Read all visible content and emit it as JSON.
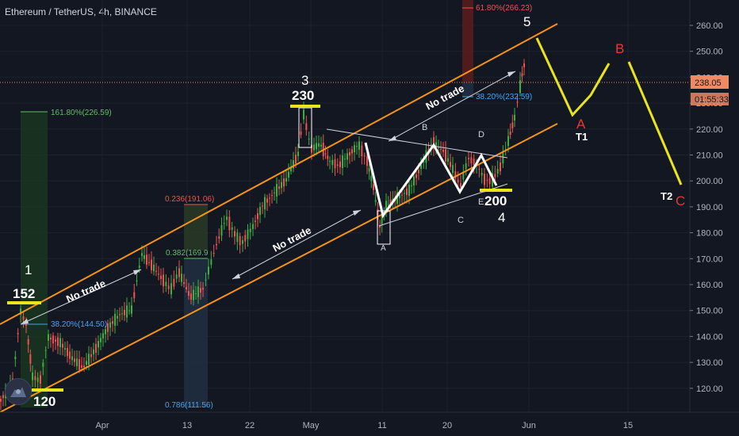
{
  "header": {
    "title": "Ethereum / TetherUS, 4h, BINANCE"
  },
  "colors": {
    "background": "#131722",
    "up": "#26a69a",
    "up_green": "#3cb043",
    "down": "#ef5350",
    "channel": "#f7931a",
    "yellow": "#e8e51e",
    "wave_white": "#ffffff",
    "fib_blue": "#42a5f5",
    "fib_green": "#66bb6a",
    "fib_red": "#ef5350",
    "price_tag": "#ef8a62"
  },
  "price_axis": {
    "ticks": [
      "260.00",
      "250.00",
      "240.00",
      "230.00",
      "220.00",
      "210.00",
      "200.00",
      "190.00",
      "180.00",
      "170.00",
      "160.00",
      "150.00",
      "140.00",
      "130.00",
      "120.00"
    ],
    "current_price": "238.05",
    "countdown": "01:55:33"
  },
  "time_axis": {
    "ticks": [
      "Apr",
      "13",
      "22",
      "May",
      "11",
      "20",
      "Jun",
      "15"
    ]
  },
  "labels": {
    "wave_1": "1",
    "wave_1_price": "152",
    "wave_low": "120",
    "wave_3": "3",
    "wave_3_price": "230",
    "wave_4": "4",
    "wave_4_price": "200",
    "wave_5": "5",
    "tri_a": "A",
    "tri_b": "B",
    "tri_c": "C",
    "tri_d": "D",
    "tri_e": "E",
    "abc_a": "A",
    "abc_b": "B",
    "abc_c": "C",
    "t1": "T1",
    "t2": "T2",
    "no_trade_1": "No trade",
    "no_trade_2": "No trade",
    "no_trade_3": "No trade"
  },
  "fib_labels": {
    "f1": "161.80%(226.59)",
    "f2": "38.20%(144.50)",
    "f3": "0.236(191.06)",
    "f4": "0.382(169.9",
    "f5": "0.786(111.56)",
    "f6": "61.80%(266.23)",
    "f7": "38.20%(232.59)"
  },
  "chart_data": {
    "type": "candlestick",
    "symbol": "Ethereum / TetherUS",
    "timeframe": "4h",
    "exchange": "BINANCE",
    "ylim": [
      112,
      266
    ],
    "current_price": 238.05,
    "key_levels": {
      "wave_1": 152,
      "wave_low": 120,
      "wave_3": 230,
      "wave_4": 200
    },
    "fib_levels": [
      226.59,
      144.5,
      191.06,
      169.9,
      111.56,
      266.23,
      232.59
    ]
  }
}
